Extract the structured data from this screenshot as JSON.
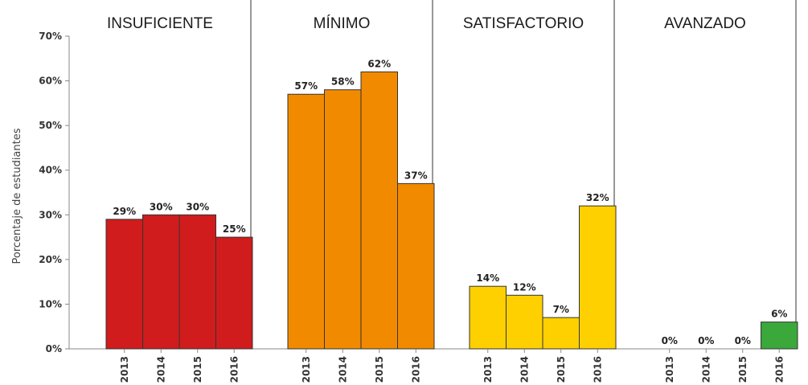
{
  "chart_data": {
    "type": "bar",
    "ylabel": "Porcentaje de estudiantes",
    "ylim": [
      0,
      70
    ],
    "yticks": [
      "0%",
      "10%",
      "20%",
      "30%",
      "40%",
      "50%",
      "60%",
      "70%"
    ],
    "grid": false,
    "categories": [
      "2013",
      "2014",
      "2015",
      "2016"
    ],
    "panels": [
      {
        "title": "INSUFICIENTE",
        "color": "#d01c1c",
        "values": [
          29,
          30,
          30,
          25
        ],
        "labels": [
          "29%",
          "30%",
          "30%",
          "25%"
        ]
      },
      {
        "title": "MÍNIMO",
        "color": "#f28a00",
        "values": [
          57,
          58,
          62,
          37
        ],
        "labels": [
          "57%",
          "58%",
          "62%",
          "37%"
        ]
      },
      {
        "title": "SATISFACTORIO",
        "color": "#ffd000",
        "values": [
          14,
          12,
          7,
          32
        ],
        "labels": [
          "14%",
          "12%",
          "7%",
          "32%"
        ]
      },
      {
        "title": "AVANZADO",
        "color": "#3aa83a",
        "values": [
          0,
          0,
          0,
          6
        ],
        "labels": [
          "0%",
          "0%",
          "0%",
          "6%"
        ]
      }
    ]
  }
}
